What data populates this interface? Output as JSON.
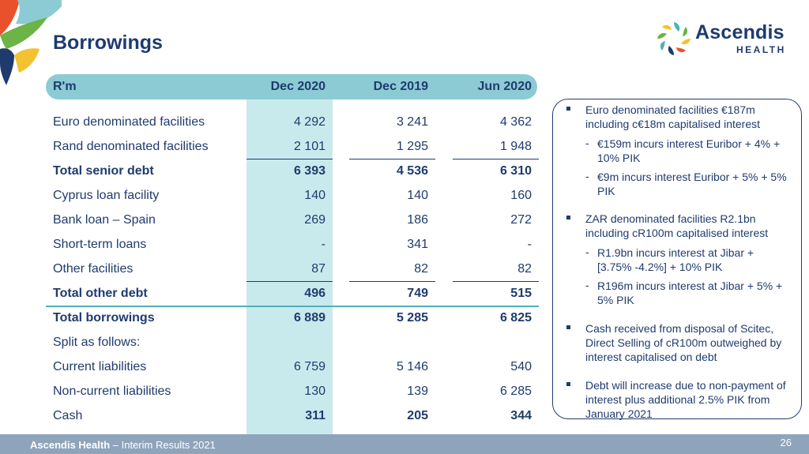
{
  "slide": {
    "title": "Borrowings",
    "page_number": "26"
  },
  "logo": {
    "name": "Ascendis",
    "sub": "HEALTH",
    "colors": [
      "#1f3b6e",
      "#4fb0b8",
      "#f2c230",
      "#e9512d",
      "#6bb445"
    ]
  },
  "table": {
    "headers": [
      "R'm",
      "Dec 2020",
      "Dec 2019",
      "Jun 2020"
    ],
    "rows": [
      {
        "label": "Euro denominated facilities",
        "v1": "4 292",
        "v2": "3 241",
        "v3": "4 362",
        "bold": false
      },
      {
        "label": "Rand denominated facilities",
        "v1": "2 101",
        "v2": "1 295",
        "v3": "1 948",
        "bold": false
      },
      {
        "label": "Total senior debt",
        "v1": "6 393",
        "v2": "4 536",
        "v3": "6 310",
        "bold": true
      },
      {
        "label": "Cyprus loan facility",
        "v1": "140",
        "v2": "140",
        "v3": "160",
        "bold": false
      },
      {
        "label": "Bank loan – Spain",
        "v1": "269",
        "v2": "186",
        "v3": "272",
        "bold": false
      },
      {
        "label": "Short-term loans",
        "v1": "-",
        "v2": "341",
        "v3": "-",
        "bold": false
      },
      {
        "label": "Other facilities",
        "v1": "87",
        "v2": "82",
        "v3": "82",
        "bold": false
      },
      {
        "label": "Total other debt",
        "v1": "496",
        "v2": "749",
        "v3": "515",
        "bold": true
      },
      {
        "label": "Total borrowings",
        "v1": "6 889",
        "v2": "5 285",
        "v3": "6 825",
        "bold": true
      },
      {
        "label": "Split as follows:",
        "v1": "",
        "v2": "",
        "v3": "",
        "bold": false
      },
      {
        "label": "Current liabilities",
        "v1": "6 759",
        "v2": "5 146",
        "v3": "540",
        "bold": false
      },
      {
        "label": "Non-current liabilities",
        "v1": "130",
        "v2": "139",
        "v3": "6 285",
        "bold": false
      },
      {
        "label": "Cash",
        "v1": "311",
        "v2": "205",
        "v3": "344",
        "bold": false,
        "bold_values": true
      }
    ]
  },
  "notes": {
    "euro_main": "Euro denominated facilities €187m including c€18m capitalised interest",
    "euro_sub1": "€159m incurs interest Euribor + 4% + 10% PIK",
    "euro_sub2": "€9m incurs interest Euribor + 5% + 5% PIK",
    "zar_main": "ZAR denominated facilities R2.1bn including cR100m capitalised interest",
    "zar_sub1": "R1.9bn incurs interest at Jibar + [3.75% -4.2%] + 10% PIK",
    "zar_sub2": "R196m incurs interest at Jibar + 5% + 5% PIK",
    "cash": "Cash received from disposal of Scitec, Direct Selling of cR100m outweighed by interest capitalised on debt",
    "debt": "Debt will increase due to non-payment of interest plus additional 2.5% PIK from January 2021"
  },
  "footer": {
    "company": "Ascendis Health",
    "rest": " – Interim Results 2021"
  }
}
